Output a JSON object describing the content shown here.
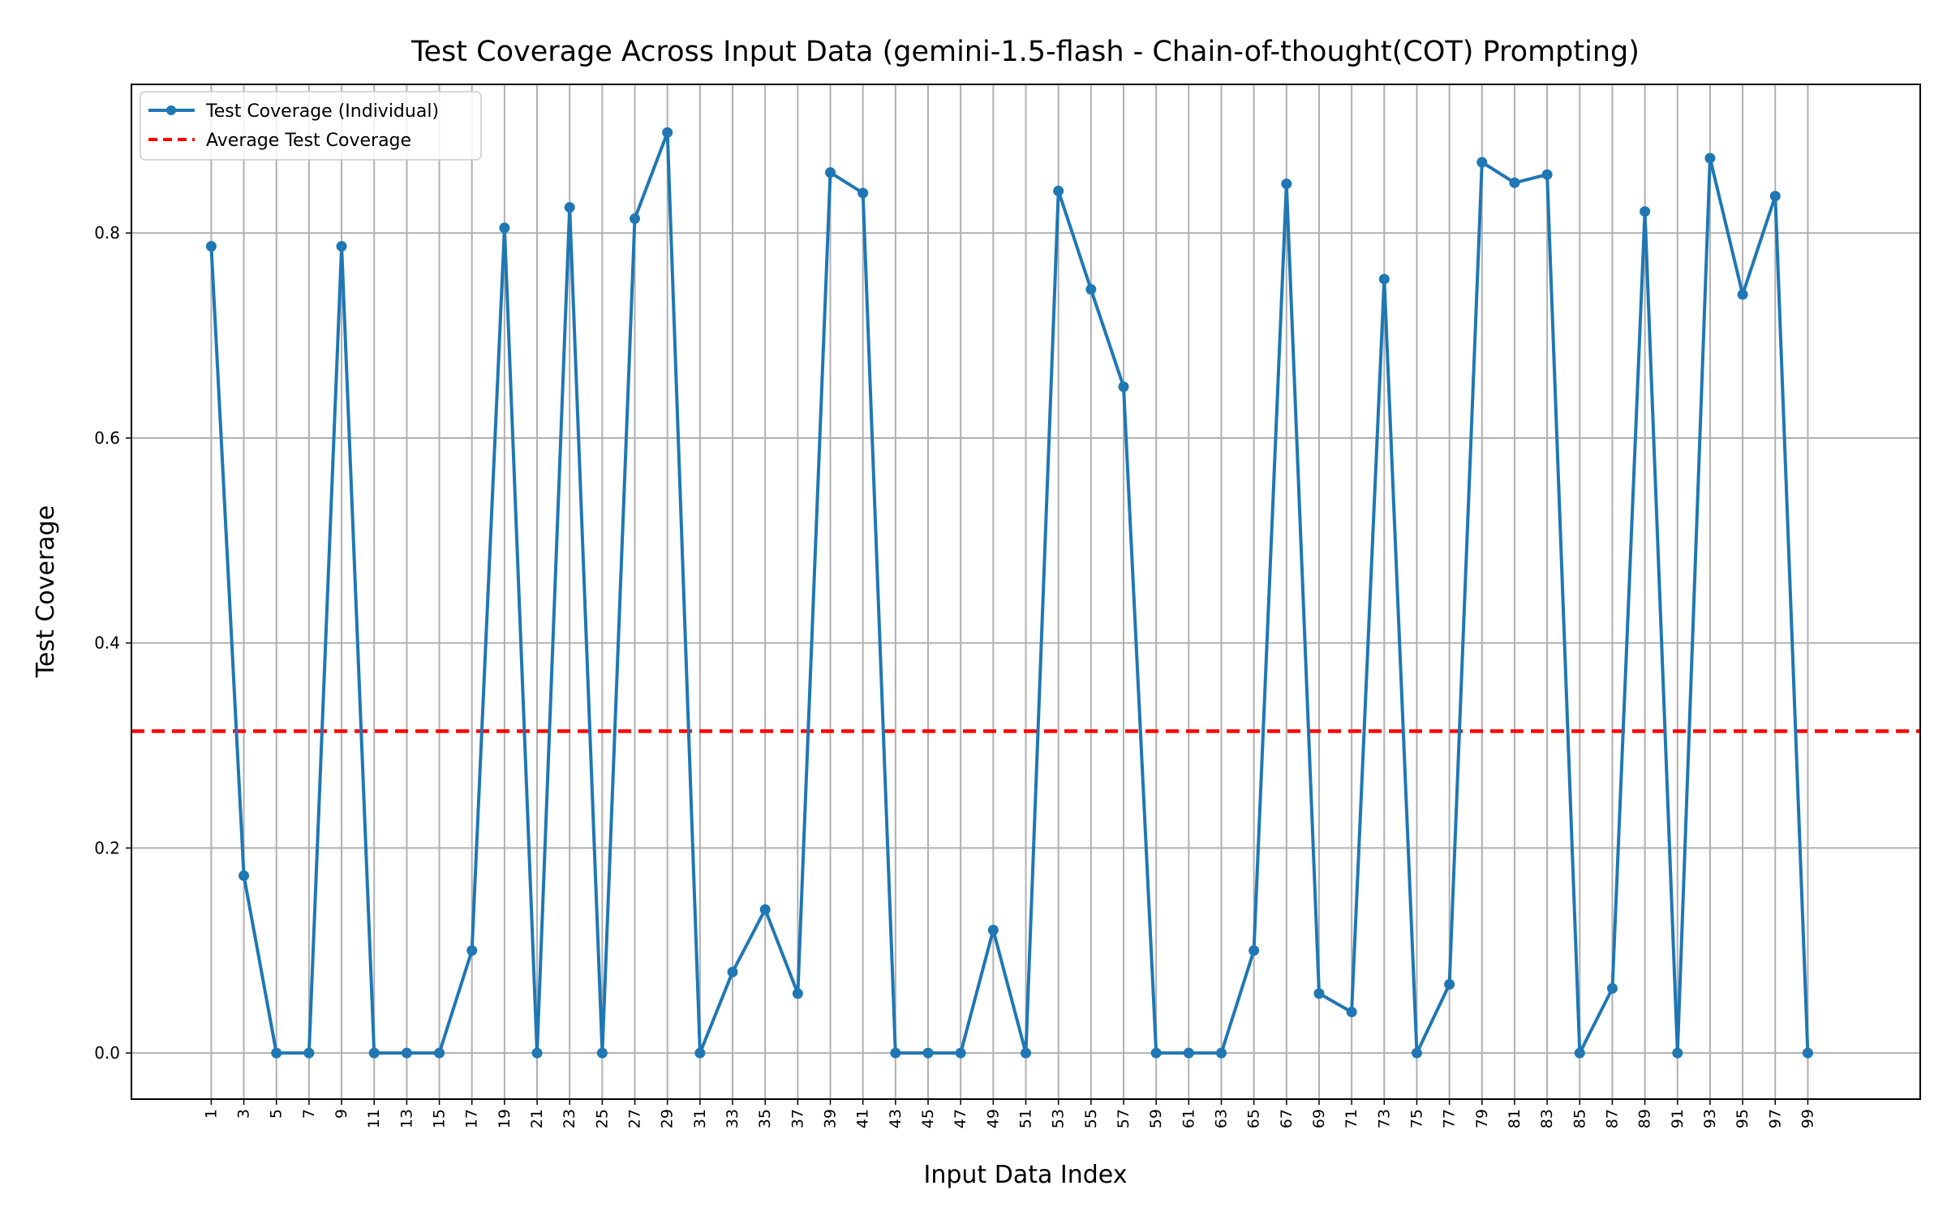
{
  "chart_data": {
    "type": "line",
    "title": "Test Coverage Across Input Data (gemini-1.5-flash - Chain-of-thought(COT) Prompting)",
    "xlabel": "Input Data Index",
    "ylabel": "Test Coverage",
    "x": [
      1,
      3,
      5,
      7,
      9,
      11,
      13,
      15,
      17,
      19,
      21,
      23,
      25,
      27,
      29,
      31,
      33,
      35,
      37,
      39,
      41,
      43,
      45,
      47,
      49,
      51,
      53,
      55,
      57,
      59,
      61,
      63,
      65,
      67,
      69,
      71,
      73,
      75,
      77,
      79,
      81,
      83,
      85,
      87,
      89,
      91,
      93,
      95,
      97,
      99
    ],
    "xticks": [
      "1",
      "3",
      "5",
      "7",
      "9",
      "11",
      "13",
      "15",
      "17",
      "19",
      "21",
      "23",
      "25",
      "27",
      "29",
      "31",
      "33",
      "35",
      "37",
      "39",
      "41",
      "43",
      "45",
      "47",
      "49",
      "51",
      "53",
      "55",
      "57",
      "59",
      "61",
      "63",
      "65",
      "67",
      "69",
      "71",
      "73",
      "75",
      "77",
      "79",
      "81",
      "83",
      "85",
      "87",
      "89",
      "91",
      "93",
      "95",
      "97",
      "99"
    ],
    "yticks": [
      "0.0",
      "0.2",
      "0.4",
      "0.6",
      "0.8"
    ],
    "xlim": [
      -3.9,
      105.9
    ],
    "ylim": [
      -0.045,
      0.945
    ],
    "grid": true,
    "legend_position": "top-left",
    "series": [
      {
        "name": "Test Coverage (Individual)",
        "color": "#1f77b4",
        "style": "solid-with-markers",
        "values": [
          0.787,
          0.173,
          0.0,
          0.0,
          0.787,
          0.0,
          0.0,
          0.0,
          0.1,
          0.805,
          0.0,
          0.825,
          0.0,
          0.814,
          0.898,
          0.0,
          0.079,
          0.14,
          0.058,
          0.859,
          0.839,
          0.0,
          0.0,
          0.0,
          0.12,
          0.0,
          0.841,
          0.745,
          0.65,
          0.0,
          0.0,
          0.0,
          0.1,
          0.848,
          0.058,
          0.04,
          0.755,
          0.0,
          0.067,
          0.869,
          0.849,
          0.857,
          0.0,
          0.063,
          0.821,
          0.0,
          0.873,
          0.74,
          0.836,
          0.0
        ]
      },
      {
        "name": "Average Test Coverage",
        "color": "#ff0000",
        "style": "dashed",
        "value": 0.314
      }
    ]
  }
}
